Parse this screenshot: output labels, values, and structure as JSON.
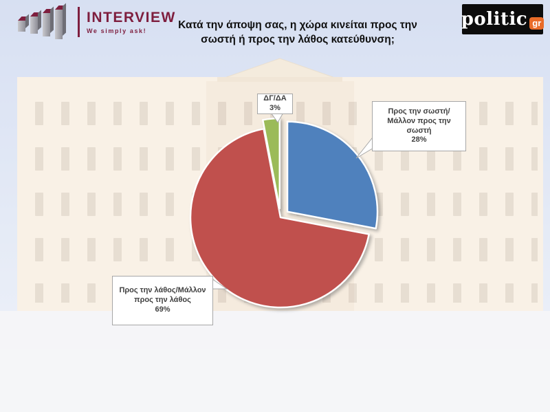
{
  "brand": {
    "name": "INTERVIEW",
    "tagline": "We simply ask!"
  },
  "publisher": {
    "name": "politic",
    "badge": "gr"
  },
  "title": {
    "text": "Κατά την άποψη σας, η χώρα κινείται προς την σωστή ή προς την λάθος κατεύθυνση;"
  },
  "colors": {
    "brand_maroon": "#7e1e3e",
    "publisher_orange": "#e96b28",
    "publisher_black": "#0c0c0c",
    "slice_blue": "#4f81bd",
    "slice_red": "#c0504d",
    "slice_green": "#9bbb59",
    "sky": "#cbd6ee",
    "building": "#f7ecdd"
  },
  "chart_data": {
    "type": "pie",
    "title": "Κατά την άποψη σας, η χώρα κινείται προς την σωστή ή προς την λάθος κατεύθυνση;",
    "categories": [
      "Προς την σωστή/Μάλλον προς την σωστή",
      "Προς την λάθος/Μάλλον προς την λάθος",
      "ΔΓ/ΔΑ"
    ],
    "values": [
      28,
      69,
      3
    ],
    "slices": [
      {
        "label": "Προς την σωστή/Μάλλον προς την σωστή",
        "value": 28,
        "pct_label": "28%",
        "color": "#4f81bd",
        "exploded": true
      },
      {
        "label": "Προς την λάθος/Μάλλον προς την λάθος",
        "value": 69,
        "pct_label": "69%",
        "color": "#c0504d",
        "exploded": false
      },
      {
        "label": "ΔΓ/ΔΑ",
        "value": 3,
        "pct_label": "3%",
        "color": "#9bbb59",
        "exploded": true
      }
    ],
    "start_angle_deg": 0,
    "direction": "clockwise",
    "legend": "none",
    "data_labels": "callouts",
    "background": "faded photo of the Hellenic Parliament building"
  }
}
